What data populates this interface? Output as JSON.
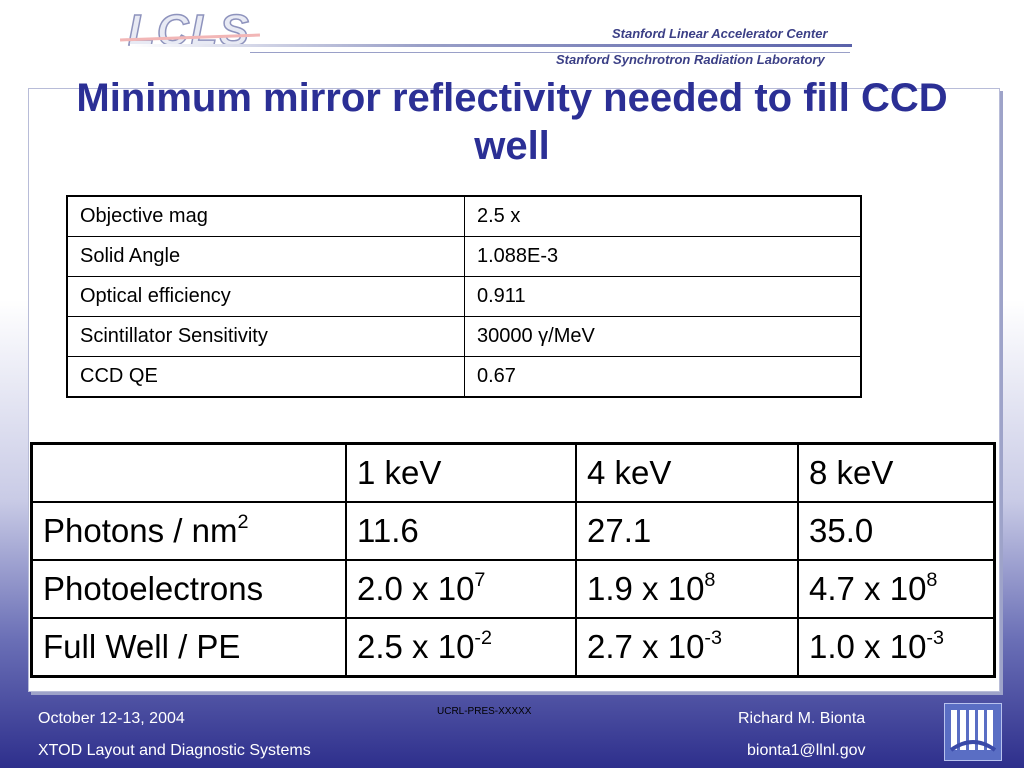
{
  "header": {
    "logo_text": "LCLS",
    "org_line1": "Stanford Linear Accelerator Center",
    "org_line2": "Stanford Synchrotron Radiation Laboratory"
  },
  "slide": {
    "title": "Minimum mirror reflectivity needed to fill CCD well"
  },
  "params_table": {
    "rows": [
      {
        "label": "Objective mag",
        "value": "2.5 x"
      },
      {
        "label": "Solid Angle",
        "value": "1.088E-3"
      },
      {
        "label": "Optical efficiency",
        "value": "0.911"
      },
      {
        "label": "Scintillator Sensitivity",
        "value": "30000 γ/MeV"
      },
      {
        "label": "CCD QE",
        "value": "0.67"
      }
    ]
  },
  "energy_table": {
    "headers": [
      "",
      "1 keV",
      "4 keV",
      "8 keV"
    ],
    "rows": [
      {
        "label": "Photons / nm",
        "label_sup": "2",
        "cells": [
          {
            "base": "11.6",
            "exp": ""
          },
          {
            "base": "27.1",
            "exp": ""
          },
          {
            "base": "35.0",
            "exp": ""
          }
        ]
      },
      {
        "label": "Photoelectrons",
        "label_sup": "",
        "cells": [
          {
            "base": "2.0 x 10",
            "exp": "7"
          },
          {
            "base": "1.9 x 10",
            "exp": "8"
          },
          {
            "base": "4.7 x 10",
            "exp": "8"
          }
        ]
      },
      {
        "label": "Full Well / PE",
        "label_sup": "",
        "cells": [
          {
            "base": "2.5 x 10",
            "exp": "-2"
          },
          {
            "base": "2.7 x 10",
            "exp": "-3"
          },
          {
            "base": "1.0 x 10",
            "exp": "-3"
          }
        ]
      }
    ]
  },
  "footer": {
    "date": "October 12-13, 2004",
    "event": "XTOD Layout and Diagnostic Systems",
    "code": "UCRL-PRES-XXXXX",
    "author": "Richard M. Bionta",
    "email": "bionta1@llnl.gov"
  },
  "icons": {
    "header_logo": "lcls-logo",
    "footer_logo": "llnl-logo"
  },
  "colors": {
    "title": "#2b2f95",
    "background_bottom": "#2e2f8c"
  }
}
